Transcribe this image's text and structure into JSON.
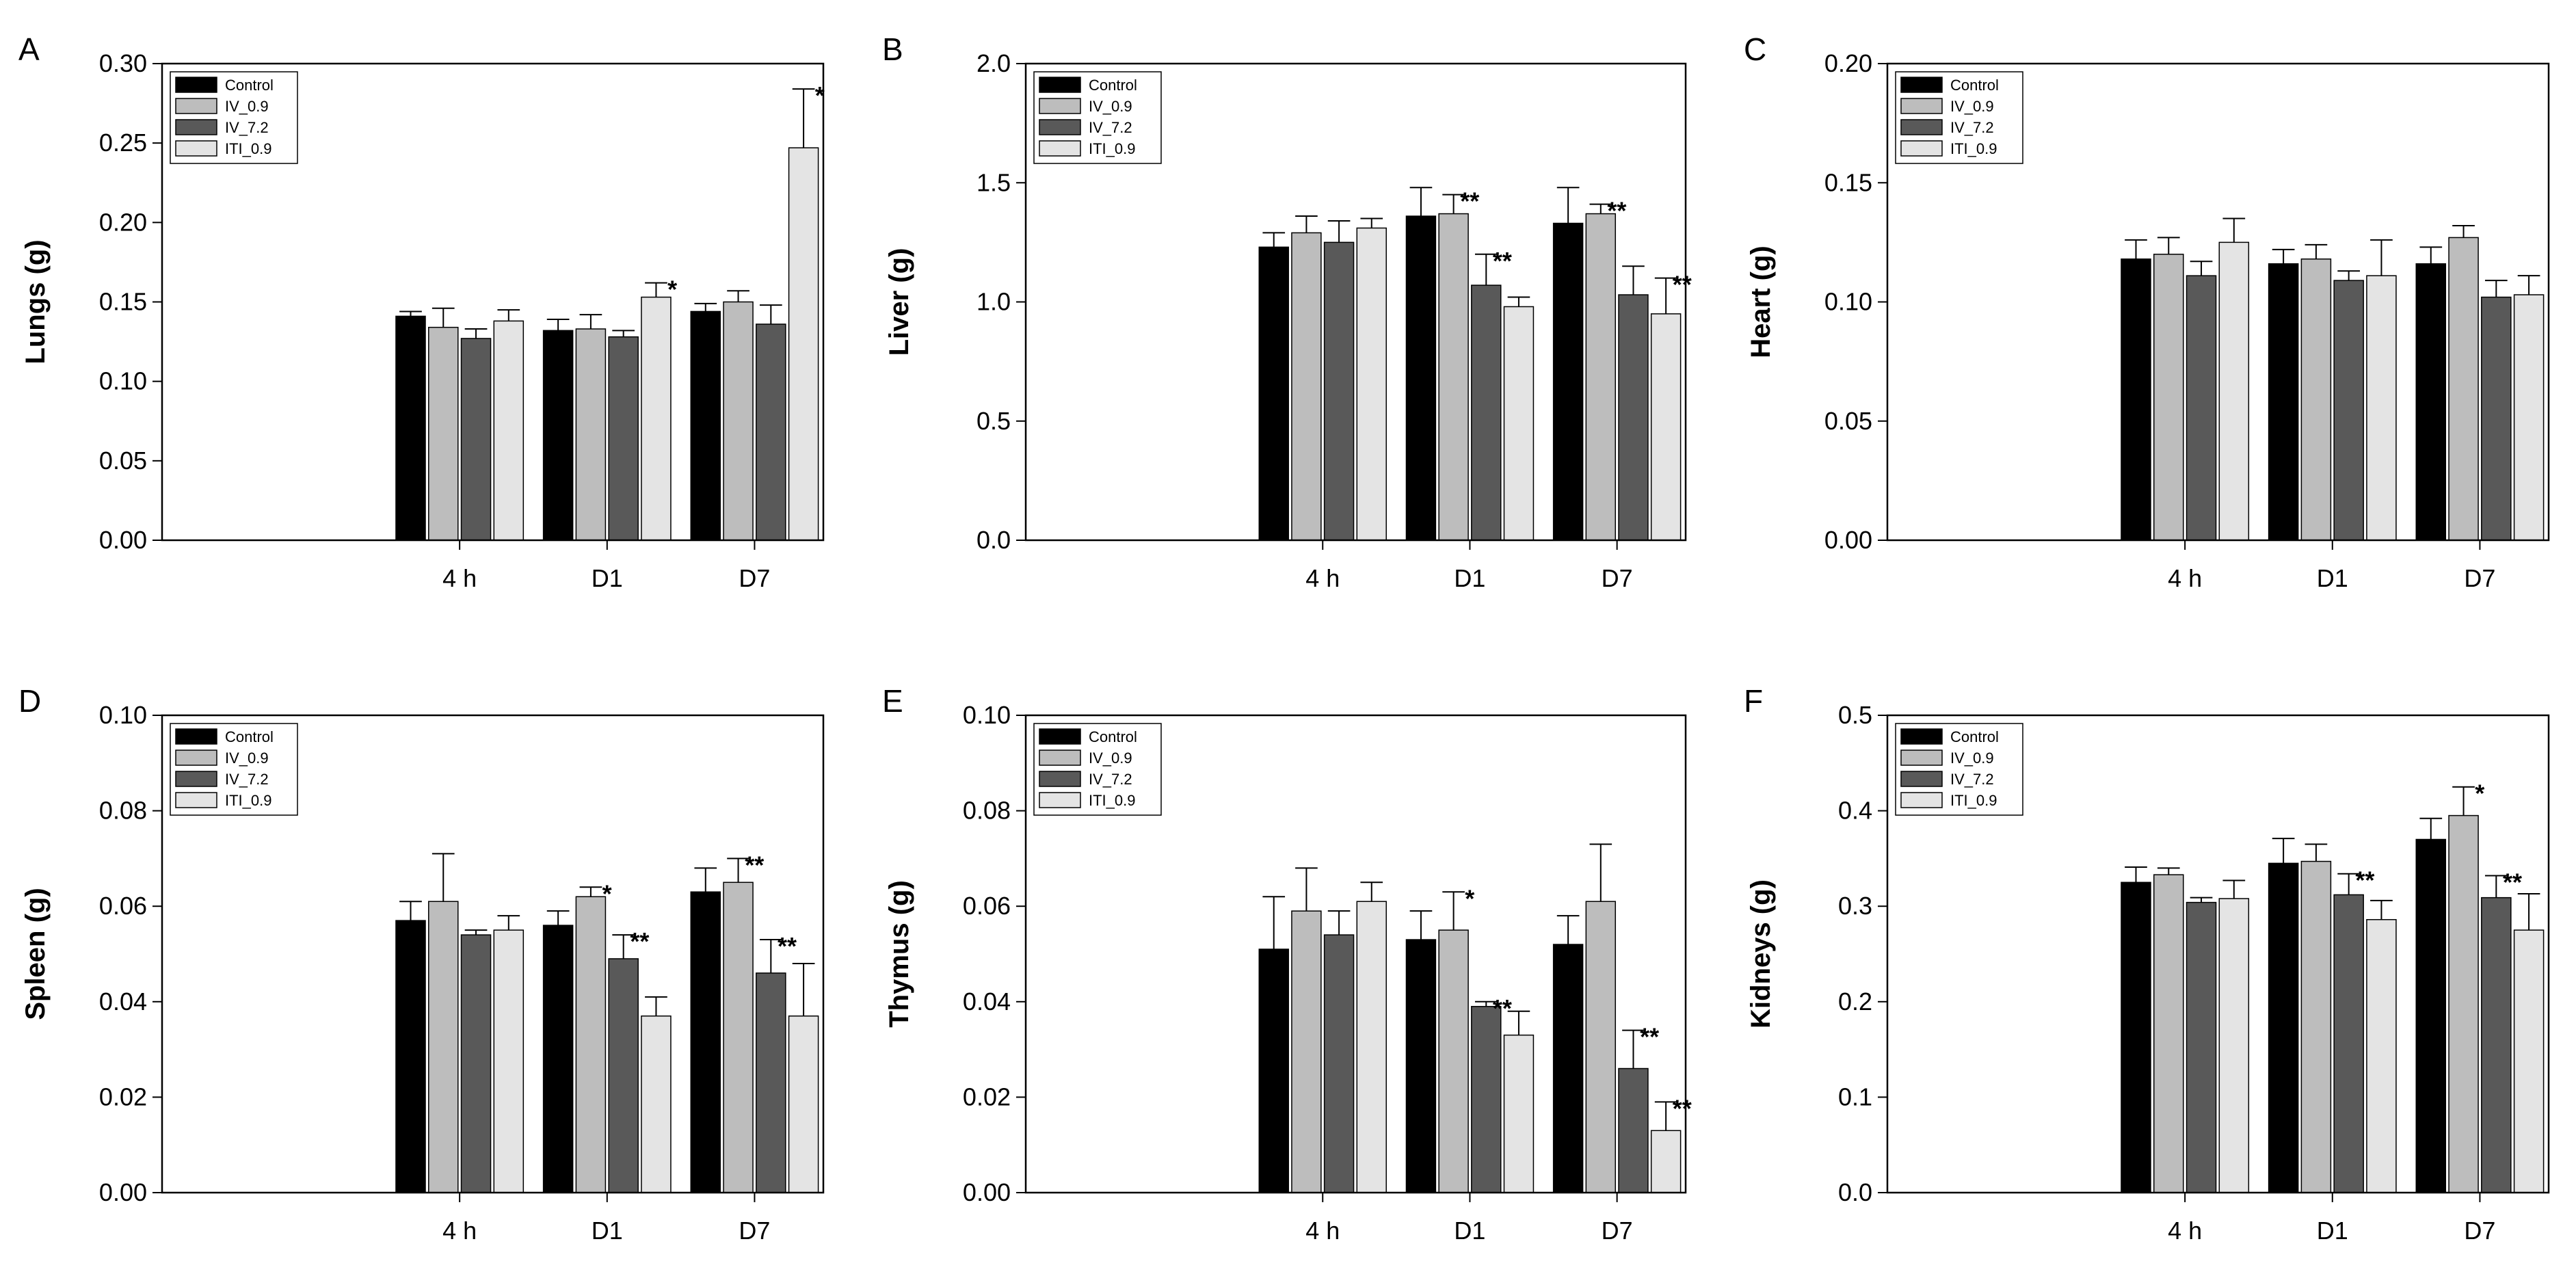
{
  "figure": {
    "legend_labels": [
      "Control",
      "IV_0.9",
      "IV_7.2",
      "ITI_0.9"
    ],
    "series_colors": [
      "#000000",
      "#bdbdbd",
      "#595959",
      "#e4e4e4"
    ],
    "edge_color": "#000000"
  },
  "chart_data": [
    {
      "panel": "A",
      "type": "bar",
      "ylabel": "Lungs (g)",
      "categories": [
        "4 h",
        "D1",
        "D7"
      ],
      "ylim": [
        0,
        0.3
      ],
      "yticks": [
        "0.00",
        "0.05",
        "0.10",
        "0.15",
        "0.20",
        "0.25",
        "0.30"
      ],
      "legend": "top-left",
      "series": [
        {
          "name": "Control",
          "values": [
            0.141,
            0.132,
            0.144
          ],
          "errors": [
            0.003,
            0.007,
            0.005
          ],
          "sig": [
            "",
            "",
            ""
          ]
        },
        {
          "name": "IV_0.9",
          "values": [
            0.134,
            0.133,
            0.15
          ],
          "errors": [
            0.012,
            0.009,
            0.007
          ],
          "sig": [
            "",
            "",
            ""
          ]
        },
        {
          "name": "IV_7.2",
          "values": [
            0.127,
            0.128,
            0.136
          ],
          "errors": [
            0.006,
            0.004,
            0.012
          ],
          "sig": [
            "",
            "",
            ""
          ]
        },
        {
          "name": "ITI_0.9",
          "values": [
            0.138,
            0.153,
            0.247
          ],
          "errors": [
            0.007,
            0.009,
            0.037
          ],
          "sig": [
            "",
            "*",
            "*"
          ]
        }
      ]
    },
    {
      "panel": "B",
      "type": "bar",
      "ylabel": "Liver (g)",
      "categories": [
        "4 h",
        "D1",
        "D7"
      ],
      "ylim": [
        0,
        2.0
      ],
      "yticks": [
        "0.0",
        "0.5",
        "1.0",
        "1.5",
        "2.0"
      ],
      "legend": "top-left",
      "series": [
        {
          "name": "Control",
          "values": [
            1.23,
            1.36,
            1.33
          ],
          "errors": [
            0.06,
            0.12,
            0.15
          ],
          "sig": [
            "",
            "",
            ""
          ]
        },
        {
          "name": "IV_0.9",
          "values": [
            1.29,
            1.37,
            1.37
          ],
          "errors": [
            0.07,
            0.08,
            0.04
          ],
          "sig": [
            "",
            "**",
            "**"
          ]
        },
        {
          "name": "IV_7.2",
          "values": [
            1.25,
            1.07,
            1.03
          ],
          "errors": [
            0.09,
            0.13,
            0.12
          ],
          "sig": [
            "",
            "**",
            ""
          ]
        },
        {
          "name": "ITI_0.9",
          "values": [
            1.31,
            0.98,
            0.95
          ],
          "errors": [
            0.04,
            0.04,
            0.15
          ],
          "sig": [
            "",
            "",
            "**"
          ]
        }
      ]
    },
    {
      "panel": "C",
      "type": "bar",
      "ylabel": "Heart (g)",
      "categories": [
        "4 h",
        "D1",
        "D7"
      ],
      "ylim": [
        0,
        0.2
      ],
      "yticks": [
        "0.00",
        "0.05",
        "0.10",
        "0.15",
        "0.20"
      ],
      "legend": "top-left",
      "series": [
        {
          "name": "Control",
          "values": [
            0.118,
            0.116,
            0.116
          ],
          "errors": [
            0.008,
            0.006,
            0.007
          ],
          "sig": [
            "",
            "",
            ""
          ]
        },
        {
          "name": "IV_0.9",
          "values": [
            0.12,
            0.118,
            0.127
          ],
          "errors": [
            0.007,
            0.006,
            0.005
          ],
          "sig": [
            "",
            "",
            ""
          ]
        },
        {
          "name": "IV_7.2",
          "values": [
            0.111,
            0.109,
            0.102
          ],
          "errors": [
            0.006,
            0.004,
            0.007
          ],
          "sig": [
            "",
            "",
            ""
          ]
        },
        {
          "name": "ITI_0.9",
          "values": [
            0.125,
            0.111,
            0.103
          ],
          "errors": [
            0.01,
            0.015,
            0.008
          ],
          "sig": [
            "",
            "",
            ""
          ]
        }
      ]
    },
    {
      "panel": "D",
      "type": "bar",
      "ylabel": "Spleen (g)",
      "categories": [
        "4 h",
        "D1",
        "D7"
      ],
      "ylim": [
        0,
        0.1
      ],
      "yticks": [
        "0.00",
        "0.02",
        "0.04",
        "0.06",
        "0.08",
        "0.10"
      ],
      "legend": "top-left",
      "series": [
        {
          "name": "Control",
          "values": [
            0.057,
            0.056,
            0.063
          ],
          "errors": [
            0.004,
            0.003,
            0.005
          ],
          "sig": [
            "",
            "",
            ""
          ]
        },
        {
          "name": "IV_0.9",
          "values": [
            0.061,
            0.062,
            0.065
          ],
          "errors": [
            0.01,
            0.002,
            0.005
          ],
          "sig": [
            "",
            "*",
            "**"
          ]
        },
        {
          "name": "IV_7.2",
          "values": [
            0.054,
            0.049,
            0.046
          ],
          "errors": [
            0.001,
            0.005,
            0.007
          ],
          "sig": [
            "",
            "**",
            "**"
          ]
        },
        {
          "name": "ITI_0.9",
          "values": [
            0.055,
            0.037,
            0.037
          ],
          "errors": [
            0.003,
            0.004,
            0.011
          ],
          "sig": [
            "",
            "",
            ""
          ]
        }
      ]
    },
    {
      "panel": "E",
      "type": "bar",
      "ylabel": "Thymus (g)",
      "categories": [
        "4 h",
        "D1",
        "D7"
      ],
      "ylim": [
        0,
        0.1
      ],
      "yticks": [
        "0.00",
        "0.02",
        "0.04",
        "0.06",
        "0.08",
        "0.10"
      ],
      "legend": "top-left",
      "series": [
        {
          "name": "Control",
          "values": [
            0.051,
            0.053,
            0.052
          ],
          "errors": [
            0.011,
            0.006,
            0.006
          ],
          "sig": [
            "",
            "",
            ""
          ]
        },
        {
          "name": "IV_0.9",
          "values": [
            0.059,
            0.055,
            0.061
          ],
          "errors": [
            0.009,
            0.008,
            0.012
          ],
          "sig": [
            "",
            "*",
            ""
          ]
        },
        {
          "name": "IV_7.2",
          "values": [
            0.054,
            0.039,
            0.026
          ],
          "errors": [
            0.005,
            0.001,
            0.008
          ],
          "sig": [
            "",
            "**",
            "**"
          ]
        },
        {
          "name": "ITI_0.9",
          "values": [
            0.061,
            0.033,
            0.013
          ],
          "errors": [
            0.004,
            0.005,
            0.006
          ],
          "sig": [
            "",
            "",
            "**"
          ]
        }
      ]
    },
    {
      "panel": "F",
      "type": "bar",
      "ylabel": "Kidneys (g)",
      "categories": [
        "4 h",
        "D1",
        "D7"
      ],
      "ylim": [
        0,
        0.5
      ],
      "yticks": [
        "0.0",
        "0.1",
        "0.2",
        "0.3",
        "0.4",
        "0.5"
      ],
      "legend": "top-left",
      "series": [
        {
          "name": "Control",
          "values": [
            0.325,
            0.345,
            0.37
          ],
          "errors": [
            0.016,
            0.026,
            0.022
          ],
          "sig": [
            "",
            "",
            ""
          ]
        },
        {
          "name": "IV_0.9",
          "values": [
            0.333,
            0.347,
            0.395
          ],
          "errors": [
            0.007,
            0.018,
            0.03
          ],
          "sig": [
            "",
            "",
            "*"
          ]
        },
        {
          "name": "IV_7.2",
          "values": [
            0.304,
            0.312,
            0.309
          ],
          "errors": [
            0.005,
            0.022,
            0.023
          ],
          "sig": [
            "",
            "**",
            "**"
          ]
        },
        {
          "name": "ITI_0.9",
          "values": [
            0.308,
            0.286,
            0.275
          ],
          "errors": [
            0.019,
            0.02,
            0.038
          ],
          "sig": [
            "",
            "",
            ""
          ]
        }
      ]
    }
  ]
}
